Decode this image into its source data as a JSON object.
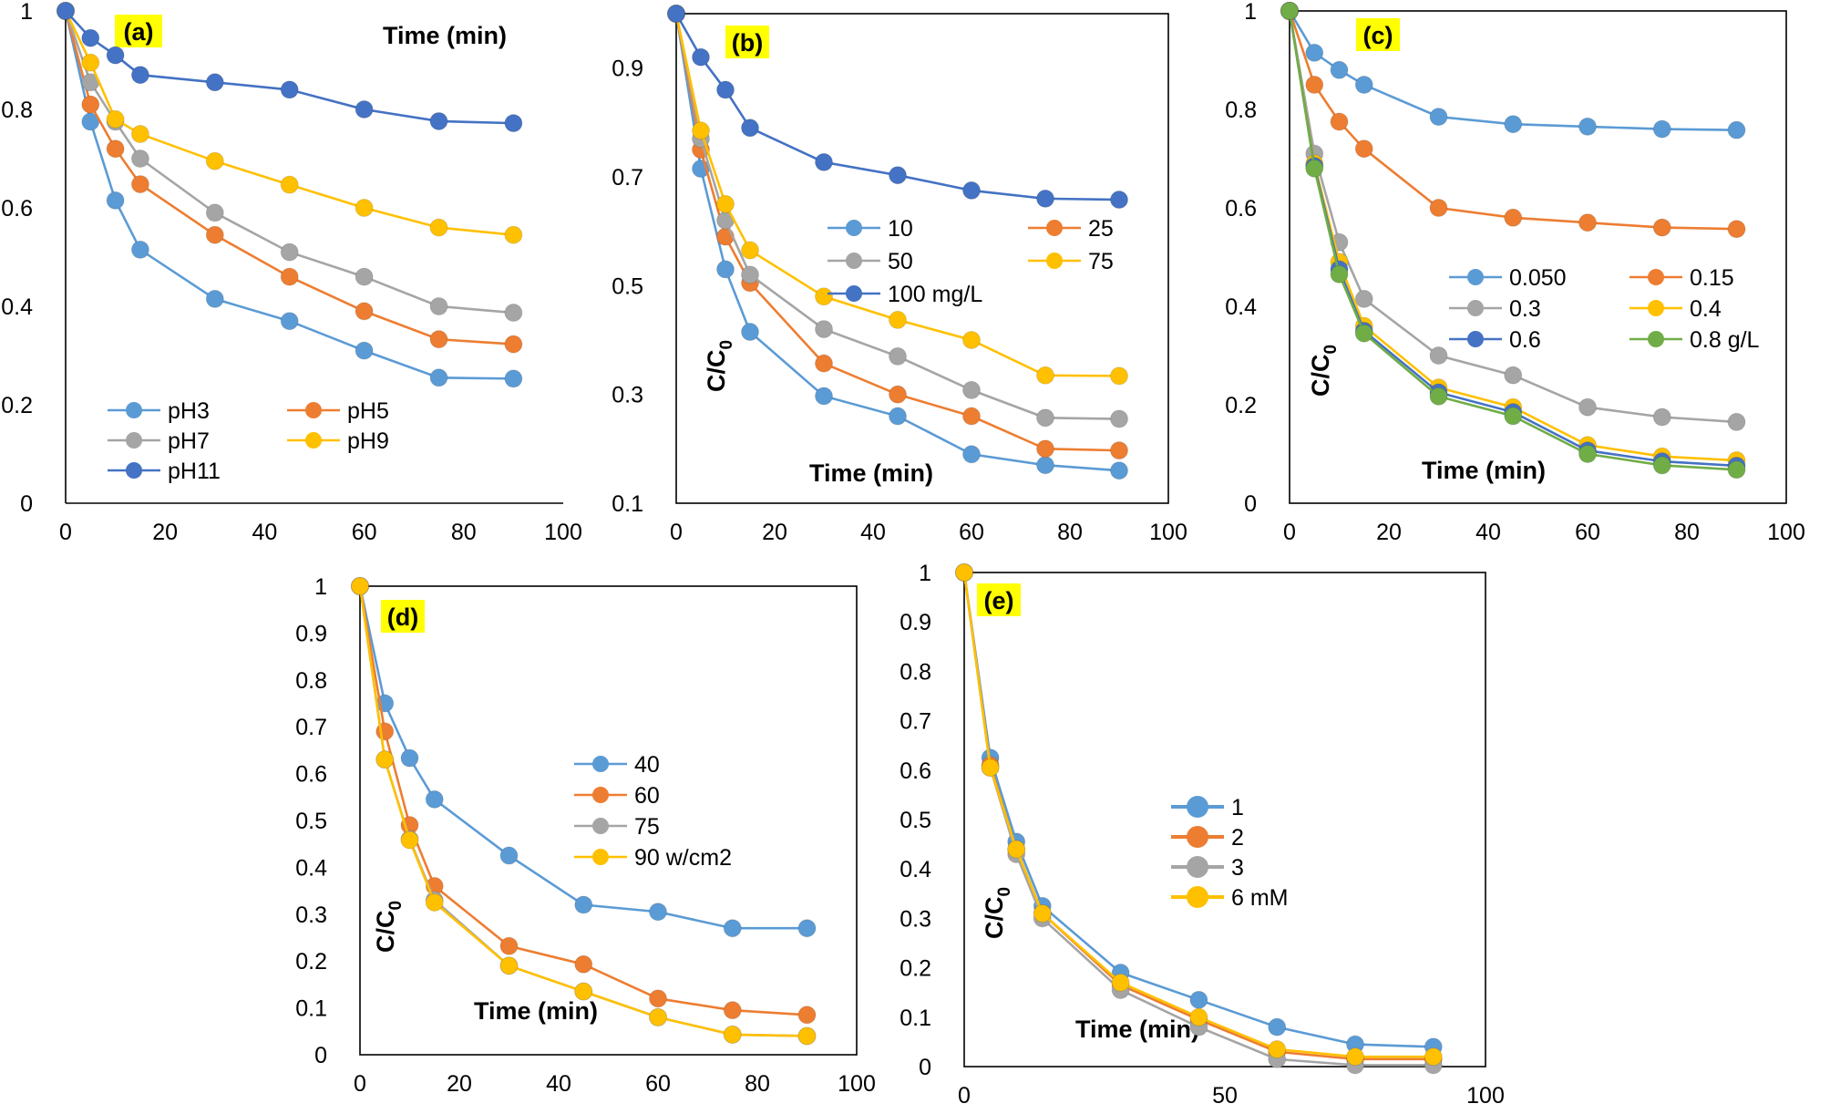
{
  "chart_data": [
    {
      "id": "a",
      "type": "line",
      "panel_label": "(a)",
      "xlabel": "Time (min)",
      "ylabel": "",
      "xlim": [
        0,
        100
      ],
      "ylim": [
        0,
        1
      ],
      "xticks": [
        "0",
        "20",
        "40",
        "60",
        "80",
        "100"
      ],
      "yticks": [
        "0",
        "0.2",
        "0.4",
        "0.6",
        "0.8",
        "1"
      ],
      "x": [
        0,
        5,
        10,
        15,
        30,
        45,
        60,
        75,
        90
      ],
      "series": [
        {
          "name": "pH3",
          "color": "#5B9BD5",
          "values": [
            1,
            0.775,
            0.615,
            0.515,
            0.415,
            0.37,
            0.31,
            0.255,
            0.253
          ]
        },
        {
          "name": "pH5",
          "color": "#ED7D31",
          "values": [
            1,
            0.81,
            0.72,
            0.648,
            0.545,
            0.46,
            0.39,
            0.333,
            0.323
          ]
        },
        {
          "name": "pH7",
          "color": "#A5A5A5",
          "values": [
            1,
            0.855,
            0.775,
            0.7,
            0.59,
            0.51,
            0.46,
            0.4,
            0.387
          ]
        },
        {
          "name": "pH9",
          "color": "#FFC000",
          "values": [
            1,
            0.895,
            0.78,
            0.75,
            0.695,
            0.647,
            0.6,
            0.56,
            0.545
          ]
        },
        {
          "name": "pH11",
          "color": "#4472C4",
          "values": [
            1,
            0.945,
            0.91,
            0.87,
            0.855,
            0.84,
            0.8,
            0.776,
            0.772
          ]
        }
      ]
    },
    {
      "id": "b",
      "type": "line",
      "panel_label": "(b)",
      "xlabel": "Time (min)",
      "ylabel": "C/C0",
      "xlim": [
        0,
        100
      ],
      "ylim": [
        0.1,
        1.0
      ],
      "xticks": [
        "0",
        "20",
        "40",
        "60",
        "80",
        "100"
      ],
      "yticks": [
        "0.1",
        "0.3",
        "0.5",
        "0.7",
        "0.9"
      ],
      "x": [
        0,
        5,
        10,
        15,
        30,
        45,
        60,
        75,
        90
      ],
      "series": [
        {
          "name": "10",
          "color": "#5B9BD5",
          "values": [
            1,
            0.715,
            0.53,
            0.415,
            0.297,
            0.26,
            0.19,
            0.17,
            0.16
          ]
        },
        {
          "name": "25",
          "color": "#ED7D31",
          "values": [
            1,
            0.75,
            0.59,
            0.505,
            0.357,
            0.3,
            0.26,
            0.2,
            0.197
          ]
        },
        {
          "name": "50",
          "color": "#A5A5A5",
          "values": [
            1,
            0.77,
            0.62,
            0.52,
            0.42,
            0.37,
            0.308,
            0.257,
            0.255
          ]
        },
        {
          "name": "75",
          "color": "#FFC000",
          "values": [
            1,
            0.785,
            0.65,
            0.565,
            0.48,
            0.437,
            0.4,
            0.335,
            0.334
          ]
        },
        {
          "name": "100 mg/L",
          "color": "#4472C4",
          "values": [
            1,
            0.92,
            0.86,
            0.79,
            0.727,
            0.703,
            0.675,
            0.66,
            0.658
          ]
        }
      ]
    },
    {
      "id": "c",
      "type": "line",
      "panel_label": "(c)",
      "xlabel": "Time (min)",
      "ylabel": "C/C0",
      "xlim": [
        0,
        100
      ],
      "ylim": [
        0,
        1
      ],
      "xticks": [
        "0",
        "20",
        "40",
        "60",
        "80",
        "100"
      ],
      "yticks": [
        "0",
        "0.2",
        "0.4",
        "0.6",
        "0.8",
        "1"
      ],
      "x": [
        0,
        5,
        10,
        15,
        30,
        45,
        60,
        75,
        90
      ],
      "series": [
        {
          "name": "0.050",
          "color": "#5B9BD5",
          "values": [
            1,
            0.915,
            0.88,
            0.85,
            0.785,
            0.77,
            0.765,
            0.76,
            0.758
          ]
        },
        {
          "name": "0.15",
          "color": "#ED7D31",
          "values": [
            1,
            0.85,
            0.775,
            0.72,
            0.6,
            0.58,
            0.57,
            0.56,
            0.557
          ]
        },
        {
          "name": "0.3",
          "color": "#A5A5A5",
          "values": [
            1,
            0.71,
            0.53,
            0.415,
            0.3,
            0.26,
            0.195,
            0.175,
            0.165
          ]
        },
        {
          "name": "0.4",
          "color": "#FFC000",
          "values": [
            1,
            0.69,
            0.49,
            0.36,
            0.235,
            0.195,
            0.118,
            0.095,
            0.087
          ]
        },
        {
          "name": "0.6",
          "color": "#4472C4",
          "values": [
            1,
            0.685,
            0.475,
            0.35,
            0.225,
            0.185,
            0.107,
            0.085,
            0.076
          ]
        },
        {
          "name": "0.8 g/L",
          "color": "#70AD47",
          "values": [
            1,
            0.68,
            0.465,
            0.345,
            0.217,
            0.177,
            0.1,
            0.077,
            0.068
          ]
        }
      ]
    },
    {
      "id": "d",
      "type": "line",
      "panel_label": "(d)",
      "xlabel": "Time (min)",
      "ylabel": "C/C0",
      "xlim": [
        0,
        100
      ],
      "ylim": [
        0,
        1
      ],
      "xticks": [
        "0",
        "20",
        "40",
        "60",
        "80",
        "100"
      ],
      "yticks": [
        "0",
        "0.1",
        "0.2",
        "0.3",
        "0.4",
        "0.5",
        "0.6",
        "0.7",
        "0.8",
        "0.9",
        "1"
      ],
      "x": [
        0,
        5,
        10,
        15,
        30,
        45,
        60,
        75,
        90
      ],
      "series": [
        {
          "name": "40",
          "color": "#5B9BD5",
          "values": [
            1,
            0.75,
            0.633,
            0.545,
            0.425,
            0.32,
            0.305,
            0.27,
            0.27
          ]
        },
        {
          "name": "60",
          "color": "#ED7D31",
          "values": [
            1,
            0.69,
            0.49,
            0.36,
            0.232,
            0.193,
            0.12,
            0.095,
            0.085
          ]
        },
        {
          "name": "75",
          "color": "#A5A5A5",
          "values": [
            1,
            0.63,
            0.46,
            0.33,
            0.19,
            0.135,
            0.08,
            0.043,
            0.04
          ]
        },
        {
          "name": "90 w/cm2",
          "color": "#FFC000",
          "values": [
            1,
            0.63,
            0.458,
            0.325,
            0.19,
            0.135,
            0.08,
            0.043,
            0.04
          ]
        }
      ]
    },
    {
      "id": "e",
      "type": "line",
      "panel_label": "(e)",
      "xlabel": "Time (min)",
      "ylabel": "C/C0",
      "xlim": [
        0,
        100
      ],
      "ylim": [
        0,
        1
      ],
      "xticks": [
        "0",
        "50",
        "100"
      ],
      "yticks": [
        "0",
        "0.1",
        "0.2",
        "0.3",
        "0.4",
        "0.5",
        "0.6",
        "0.7",
        "0.8",
        "0.9",
        "1"
      ],
      "x": [
        0,
        5,
        10,
        15,
        30,
        45,
        60,
        75,
        90
      ],
      "series": [
        {
          "name": "1",
          "color": "#5B9BD5",
          "values": [
            1,
            0.625,
            0.455,
            0.325,
            0.19,
            0.135,
            0.08,
            0.045,
            0.04
          ]
        },
        {
          "name": "2",
          "color": "#ED7D31",
          "values": [
            1,
            0.61,
            0.44,
            0.31,
            0.165,
            0.095,
            0.03,
            0.015,
            0.015
          ]
        },
        {
          "name": "3",
          "color": "#A5A5A5",
          "values": [
            1,
            0.605,
            0.43,
            0.3,
            0.155,
            0.08,
            0.015,
            0.003,
            0.003
          ]
        },
        {
          "name": "6  mM",
          "color": "#FFC000",
          "values": [
            1,
            0.605,
            0.44,
            0.31,
            0.17,
            0.1,
            0.035,
            0.02,
            0.02
          ]
        }
      ]
    }
  ]
}
